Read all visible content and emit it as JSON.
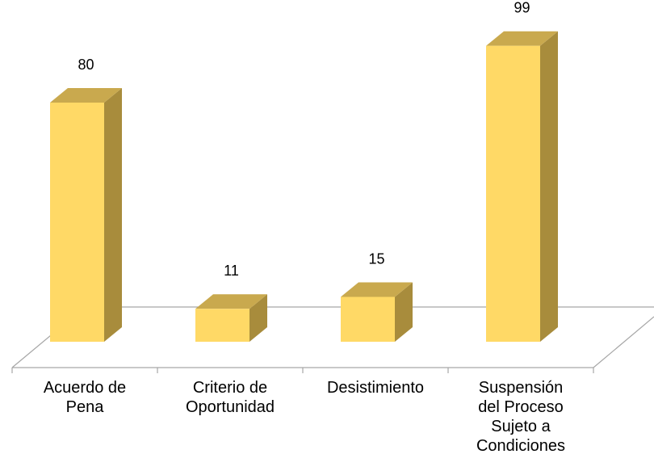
{
  "chart_data": {
    "type": "bar3d",
    "categories": [
      "Acuerdo de Pena",
      "Criterio de Oportunidad",
      "Desistimiento",
      "Suspensión del Proceso Sujeto a Condiciones"
    ],
    "values": [
      80,
      11,
      15,
      99
    ],
    "color": "#FFD966"
  }
}
